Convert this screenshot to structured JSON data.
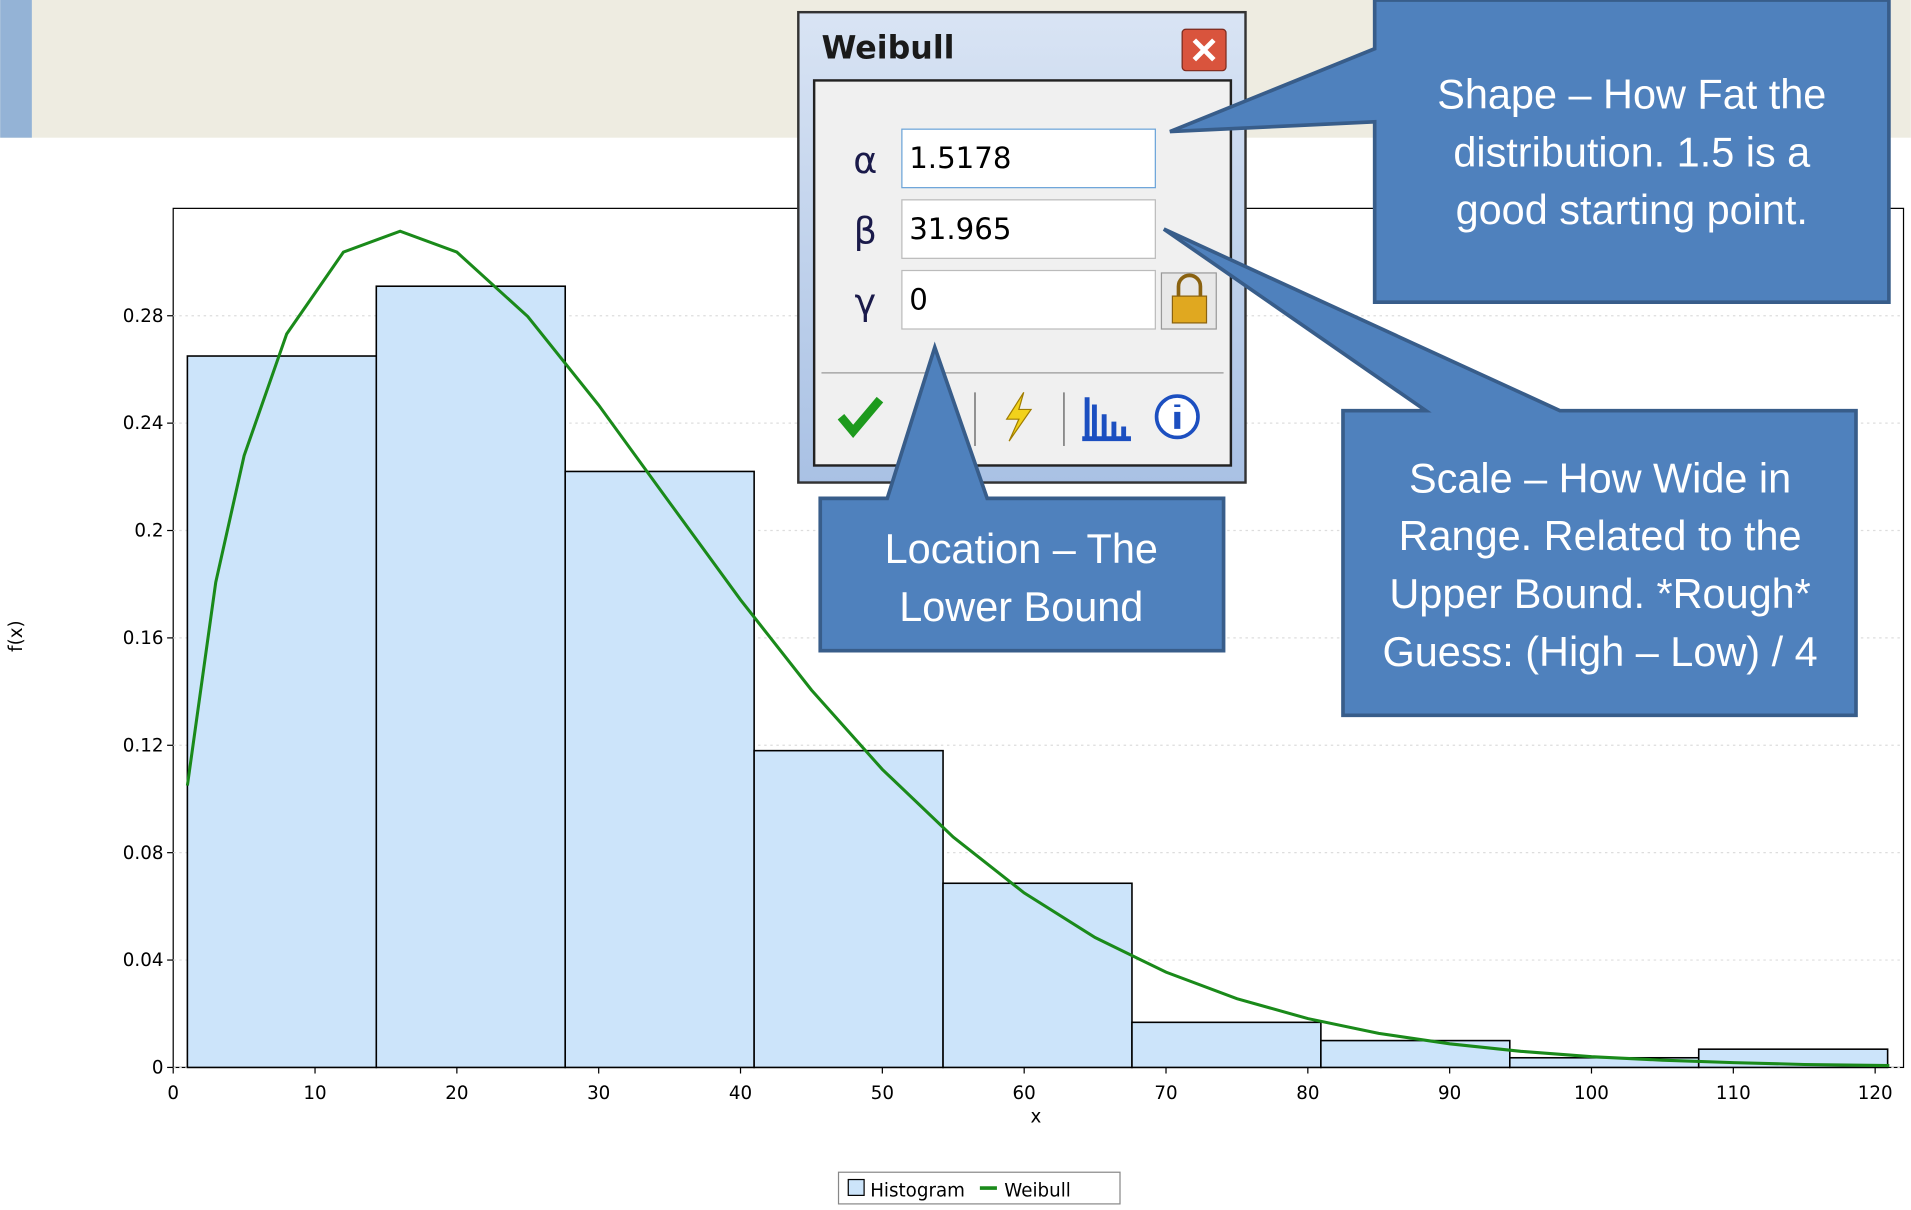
{
  "chart_data": {
    "type": "histogram",
    "xlabel": "x",
    "ylabel": "f(x)",
    "bins": [
      1,
      14.32,
      27.64,
      40.96,
      54.28,
      67.6,
      80.92,
      94.24,
      107.56,
      120.88
    ],
    "series": [
      {
        "name": "Histogram",
        "color": "#cce4fa",
        "values": [
          0.265,
          0.291,
          0.222,
          0.118,
          0.0686,
          0.0168,
          0.01,
          0.0036,
          0.0068
        ]
      },
      {
        "name": "Weibull",
        "type": "line",
        "color": "#1a8a1a",
        "x": [
          1,
          3,
          5,
          8,
          12,
          16,
          20,
          25,
          30,
          35,
          40,
          45,
          50,
          55,
          60,
          65,
          70,
          75,
          80,
          85,
          90,
          95,
          100,
          105,
          110,
          115,
          121
        ],
        "values": [
          0.105,
          0.1807,
          0.2279,
          0.2732,
          0.3037,
          0.3115,
          0.3037,
          0.2797,
          0.2467,
          0.2104,
          0.1742,
          0.1406,
          0.111,
          0.0858,
          0.065,
          0.0484,
          0.0355,
          0.0256,
          0.0182,
          0.0127,
          0.0088,
          0.006,
          0.004,
          0.0027,
          0.0018,
          0.0011,
          0.0007
        ]
      }
    ],
    "xlim": [
      0,
      122
    ],
    "ylim": [
      0,
      0.32
    ],
    "xticks": [
      0,
      10,
      20,
      30,
      40,
      50,
      60,
      70,
      80,
      90,
      100,
      110,
      120
    ],
    "yticks": [
      0,
      0.04,
      0.08,
      0.12,
      0.16,
      0.2,
      0.24,
      0.28
    ]
  },
  "dialog": {
    "title": "Weibull",
    "params": [
      {
        "symbol": "α",
        "value": 1.5178
      },
      {
        "symbol": "β",
        "value": 31.965
      },
      {
        "symbol": "γ",
        "value": 0
      }
    ]
  },
  "callouts": [
    {
      "lines": [
        "Shape – How Fat the",
        "distribution. 1.5 is a",
        "good starting point."
      ]
    },
    {
      "lines": [
        "Scale – How Wide in",
        "Range. Related to the",
        "Upper Bound. *Rough*",
        "Guess: (High – Low) / 4"
      ]
    },
    {
      "lines": [
        "Location – The",
        "Lower Bound"
      ]
    }
  ]
}
